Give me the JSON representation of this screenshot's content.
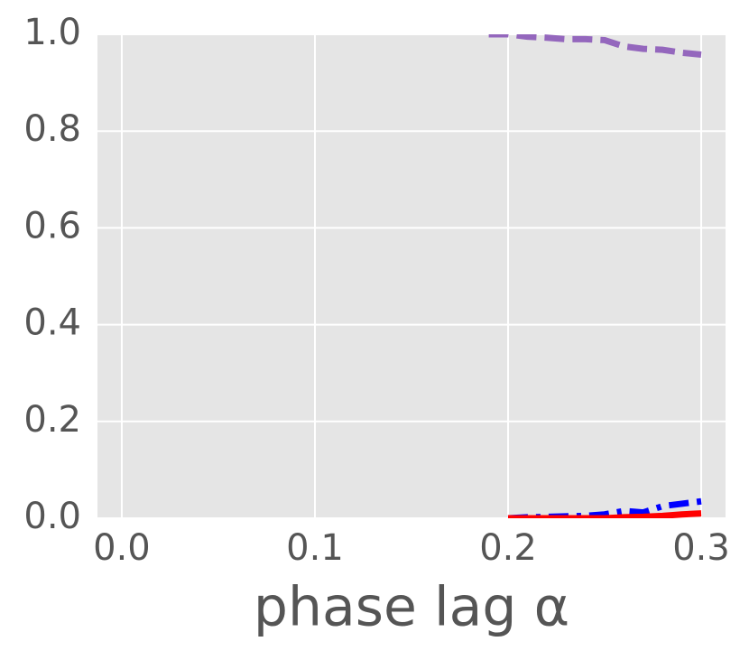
{
  "chart_data": {
    "type": "line",
    "xlabel": "phase lag α",
    "x": [
      0.19,
      0.2,
      0.21,
      0.22,
      0.23,
      0.24,
      0.25,
      0.26,
      0.27,
      0.28,
      0.29,
      0.3
    ],
    "series": [
      {
        "color": "#9467bd",
        "linestyle": "dashed",
        "values": [
          1.0,
          1.0,
          0.995,
          0.993,
          0.99,
          0.99,
          0.988,
          0.975,
          0.97,
          0.968,
          0.962,
          0.958
        ]
      },
      {
        "color": "#0000ff",
        "linestyle": "dashdot",
        "values": [
          null,
          0.0,
          0.002,
          0.003,
          0.004,
          0.005,
          0.008,
          0.015,
          0.012,
          0.025,
          0.03,
          0.035
        ]
      },
      {
        "color": "#ff0000",
        "linestyle": "solid",
        "values": [
          null,
          0.0,
          0.0,
          0.0,
          0.0,
          0.0,
          0.0,
          0.002,
          0.003,
          0.005,
          0.008,
          0.01
        ]
      }
    ],
    "xlim": [
      -0.0126,
      0.3126
    ],
    "ylim": [
      0,
      1
    ],
    "xticks": [
      {
        "value": 0,
        "label": "0.0"
      },
      0.1,
      0.2,
      0.3
    ],
    "yticks": [
      {
        "value": 0,
        "label": "0.0"
      },
      0.2,
      0.4,
      0.6,
      0.8,
      {
        "value": 1,
        "label": "1.0"
      }
    ],
    "grid": true
  }
}
